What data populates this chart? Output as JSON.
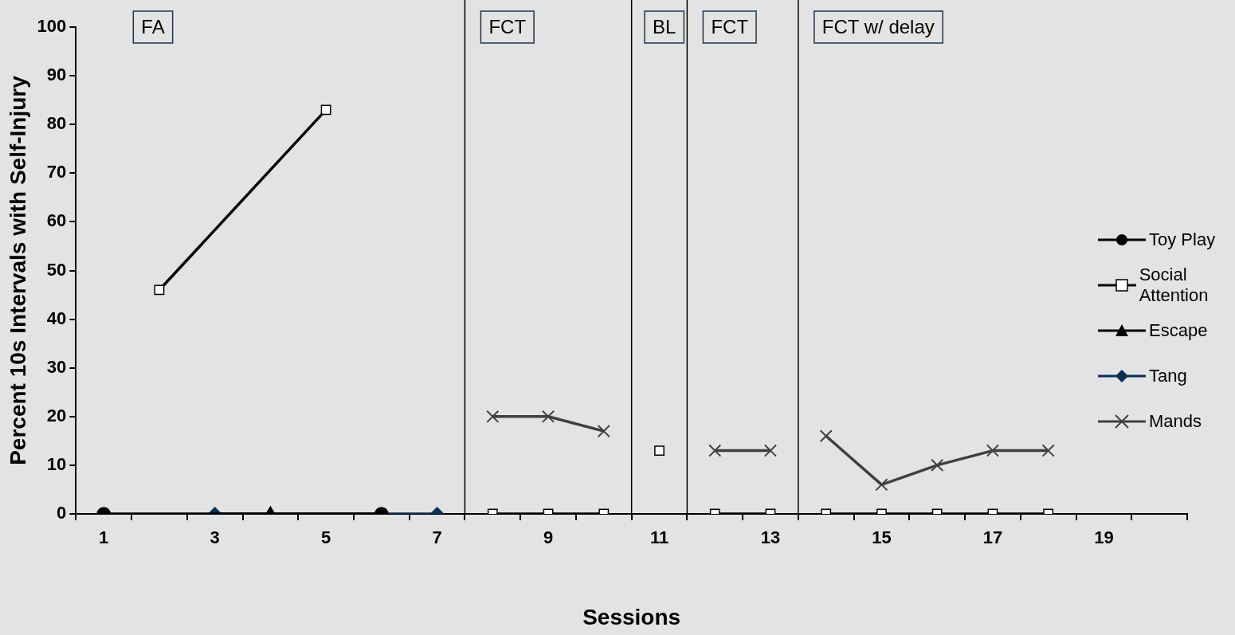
{
  "chart_data": {
    "type": "line",
    "xlabel": "Sessions",
    "ylabel": "Percent 10s Intervals with Self-Injury",
    "xlim": [
      0.5,
      20.5
    ],
    "xticks": [
      {
        "value": 0.5,
        "label": null
      },
      1,
      {
        "value": 1.5,
        "label": null
      },
      {
        "value": 2.5,
        "label": null
      },
      3,
      {
        "value": 3.5,
        "label": null
      },
      {
        "value": 4.5,
        "label": null
      },
      5,
      {
        "value": 5.5,
        "label": null
      },
      {
        "value": 6.5,
        "label": null
      },
      7,
      {
        "value": 7.5,
        "label": null
      },
      {
        "value": 8.5,
        "label": null
      },
      9,
      {
        "value": 9.5,
        "label": null
      },
      {
        "value": 10.5,
        "label": null
      },
      11,
      {
        "value": 11.5,
        "label": null
      },
      {
        "value": 12.5,
        "label": null
      },
      13,
      {
        "value": 13.5,
        "label": null
      },
      {
        "value": 14.5,
        "label": null
      },
      15,
      {
        "value": 15.5,
        "label": null
      },
      {
        "value": 16.5,
        "label": null
      },
      17,
      {
        "value": 17.5,
        "label": null
      },
      {
        "value": 18.5,
        "label": null
      },
      19,
      {
        "value": 19.5,
        "label": null
      },
      {
        "value": 20.5,
        "label": null
      }
    ],
    "ylim": [
      0,
      100
    ],
    "yticks": [
      0,
      10,
      20,
      30,
      40,
      50,
      60,
      70,
      80,
      90,
      100
    ],
    "grid": false,
    "legend": "right",
    "series": [
      {
        "name": "Toy Play",
        "color": "#000000",
        "marker": "circle",
        "x": [
          1,
          6
        ],
        "values": [
          0,
          0
        ]
      },
      {
        "name": "Social Attention",
        "color": "#000000",
        "marker": "square",
        "x": [
          2,
          5,
          7.5,
          8,
          9,
          10,
          10.5,
          11,
          11.5,
          12,
          13,
          13.5,
          14,
          15,
          16,
          17,
          18
        ],
        "values": [
          46,
          83,
          null,
          0,
          0,
          0,
          null,
          13,
          null,
          0,
          0,
          null,
          0,
          0,
          0,
          0,
          0
        ]
      },
      {
        "name": "Escape",
        "color": "#000000",
        "marker": "triangle",
        "x": [
          4
        ],
        "values": [
          0
        ]
      },
      {
        "name": "Tang",
        "color": "#0b2f55",
        "marker": "diamond",
        "x": [
          3,
          7
        ],
        "values": [
          0,
          0
        ]
      },
      {
        "name": "Mands",
        "color": "#404040",
        "marker": "cross",
        "x": [
          8,
          9,
          10,
          10.5,
          12,
          13,
          13.5,
          14,
          15,
          16,
          17,
          18
        ],
        "values": [
          20,
          20,
          17,
          null,
          13,
          13,
          null,
          16,
          6,
          10,
          13,
          13
        ]
      }
    ],
    "ref_lines": [
      {
        "axis": "x",
        "value": 7.5,
        "color": "#000000"
      },
      {
        "axis": "x",
        "value": 10.5,
        "color": "#000000"
      },
      {
        "axis": "x",
        "value": 11.5,
        "color": "#000000"
      },
      {
        "axis": "x",
        "value": 13.5,
        "color": "#000000"
      }
    ],
    "annotations": [
      "FA",
      "FCT",
      "BL",
      "FCT",
      "FCT w/ delay"
    ]
  }
}
